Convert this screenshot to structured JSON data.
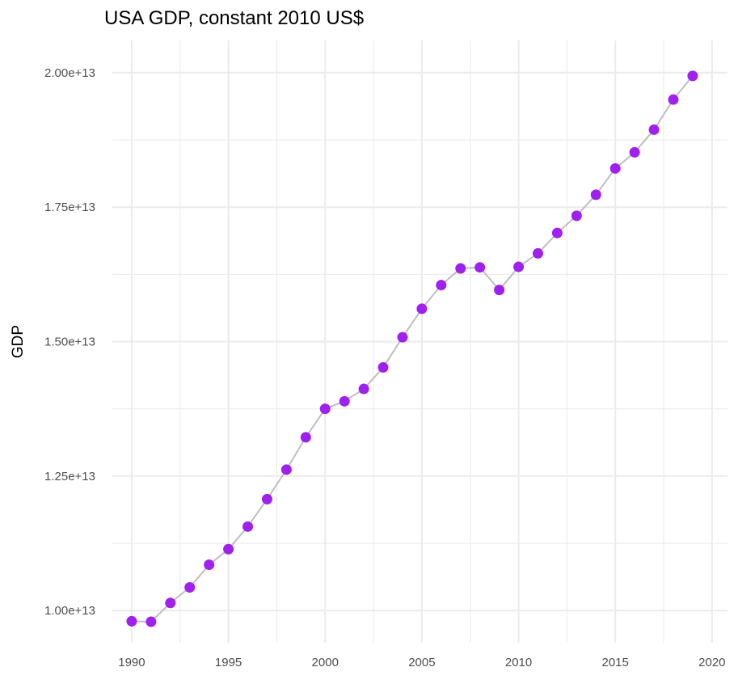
{
  "chart_data": {
    "type": "line",
    "title": "USA GDP, constant 2010 US$",
    "xlabel": "",
    "ylabel": "GDP",
    "xlim": [
      1989,
      2020.8
    ],
    "ylim": [
      9400000000000.0,
      20600000000000.0
    ],
    "x_ticks": [
      1990,
      1995,
      2000,
      2005,
      2010,
      2015,
      2020
    ],
    "x_tick_labels": [
      "1990",
      "1995",
      "2000",
      "2005",
      "2010",
      "2015",
      "2020"
    ],
    "y_ticks": [
      10000000000000.0,
      12500000000000.0,
      15000000000000.0,
      17500000000000.0,
      20000000000000.0
    ],
    "y_tick_labels": [
      "1.00e+13",
      "1.25e+13",
      "1.50e+13",
      "1.75e+13",
      "2.00e+13"
    ],
    "grid": true,
    "legend": "none",
    "colors": {
      "point": "#A020F0",
      "line": "#BEBEBE",
      "grid": "#EBEBEB",
      "tick_label": "#4D4D4D"
    },
    "series": [
      {
        "x": [
          1990,
          1991,
          1992,
          1993,
          1994,
          1995,
          1996,
          1997,
          1998,
          1999,
          2000,
          2001,
          2002,
          2003,
          2004,
          2005,
          2006,
          2007,
          2008,
          2009,
          2010,
          2011,
          2012,
          2013,
          2014,
          2015,
          2016,
          2017,
          2018,
          2019
        ],
        "values": [
          9800000000000.0,
          9790000000000.0,
          10140000000000.0,
          10430000000000.0,
          10850000000000.0,
          11140000000000.0,
          11560000000000.0,
          12070000000000.0,
          12620000000000.0,
          13220000000000.0,
          13750000000000.0,
          13890000000000.0,
          14120000000000.0,
          14520000000000.0,
          15080000000000.0,
          15610000000000.0,
          16050000000000.0,
          16360000000000.0,
          16380000000000.0,
          15960000000000.0,
          16390000000000.0,
          16640000000000.0,
          17020000000000.0,
          17340000000000.0,
          17730000000000.0,
          18220000000000.0,
          18520000000000.0,
          18940000000000.0,
          19500000000000.0,
          19940000000000.0
        ]
      }
    ]
  }
}
